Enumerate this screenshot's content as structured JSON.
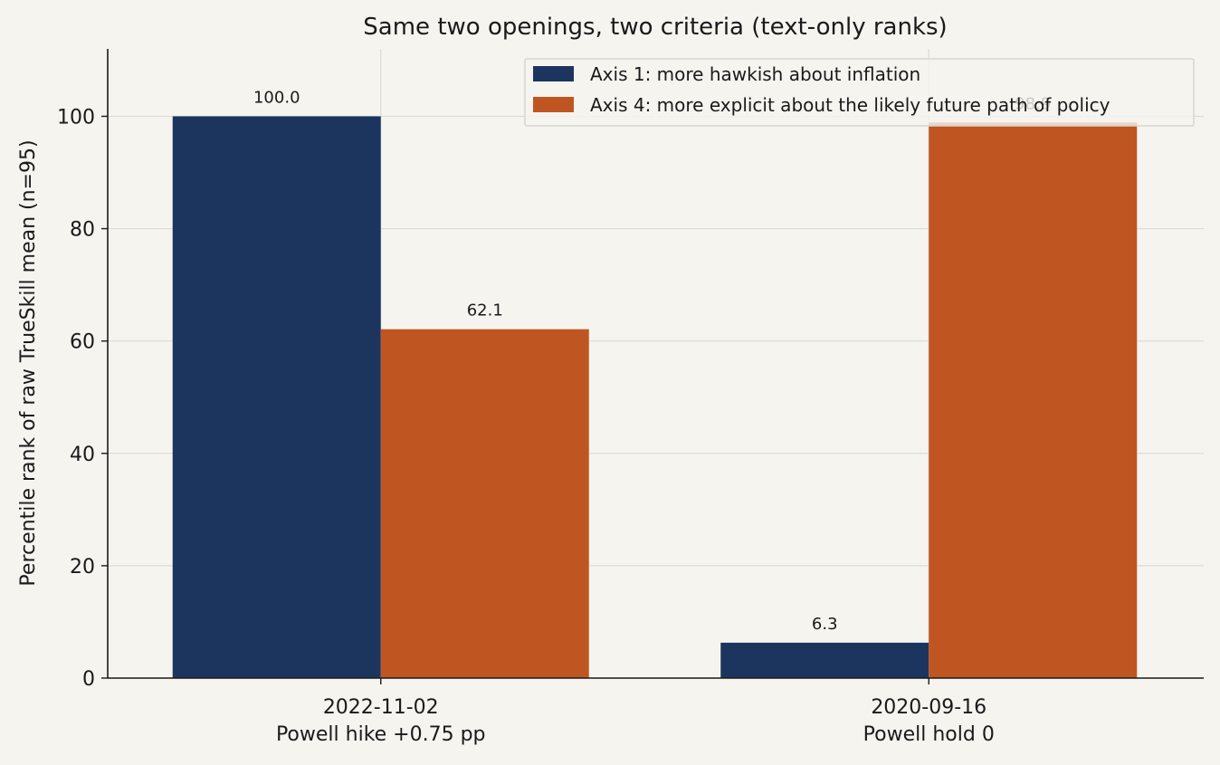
{
  "chart_data": {
    "type": "bar",
    "title": "Same two openings, two criteria (text-only ranks)",
    "xlabel": "",
    "ylabel": "Percentile rank of raw TrueSkill mean (n=95)",
    "ylim": [
      0,
      112
    ],
    "yticks": [
      0,
      20,
      40,
      60,
      80,
      100
    ],
    "grid": true,
    "legend_position": "top-right",
    "categories": [
      [
        "2022-11-02",
        "Powell hike +0.75 pp"
      ],
      [
        "2020-09-16",
        "Powell hold 0"
      ]
    ],
    "series": [
      {
        "name": "Axis 1: more hawkish about inflation",
        "color": "#1c355e",
        "values": [
          100.0,
          6.3
        ],
        "labels": [
          "100.0",
          "6.3"
        ]
      },
      {
        "name": "Axis 4: more explicit about the likely future path of policy",
        "color": "#bf5622",
        "values": [
          62.1,
          98.9
        ],
        "labels": [
          "62.1",
          "98.9"
        ]
      }
    ]
  }
}
